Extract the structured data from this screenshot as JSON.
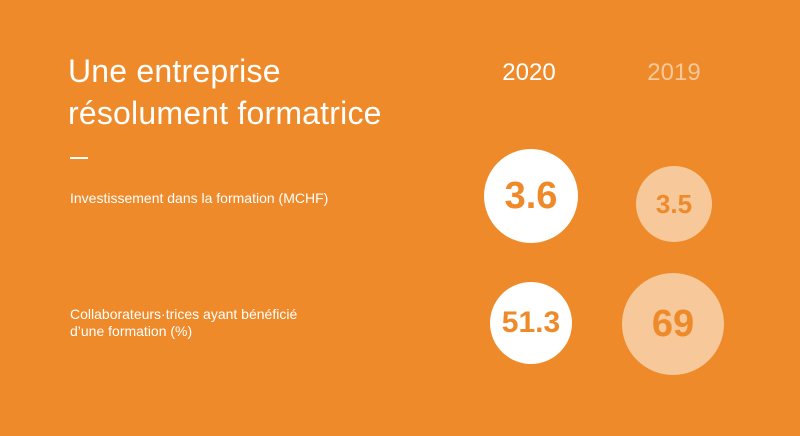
{
  "title": {
    "line1": "Une entreprise",
    "line2": "résolument formatrice"
  },
  "years": {
    "current": "2020",
    "previous": "2019"
  },
  "rows": [
    {
      "label": "Investissement dans la formation (MCHF)",
      "value_2020": "3.6",
      "value_2019": "3.5"
    },
    {
      "label_line1": "Collaborateurs·trices ayant bénéficié",
      "label_line2": "d’une formation (%)",
      "value_2020": "51.3",
      "value_2019": "69"
    }
  ],
  "colors": {
    "background": "#EE8A2A",
    "current": "#FFFFFF",
    "previous": "#F6C89A",
    "value_text": "#EE8A2A"
  }
}
